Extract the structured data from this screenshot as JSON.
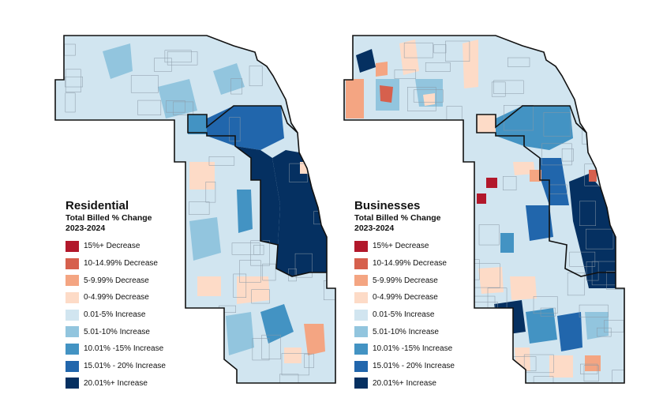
{
  "maps": [
    {
      "id": "residential",
      "title": "Residential",
      "subtitle_1": "Total Billed % Change",
      "subtitle_2": "2023-2024",
      "legend": [
        {
          "label": "15%+ Decrease",
          "color": "#b2182b"
        },
        {
          "label": "10-14.99% Decrease",
          "color": "#d6604d"
        },
        {
          "label": "5-9.99% Decrease",
          "color": "#f4a582"
        },
        {
          "label": "0-4.99% Decrease",
          "color": "#fddbc7"
        },
        {
          "label": "0.01-5% Increase",
          "color": "#d1e5f0"
        },
        {
          "label": "5.01-10% Increase",
          "color": "#92c5de"
        },
        {
          "label": "10.01% -15% Increase",
          "color": "#4393c3"
        },
        {
          "label": "15.01% - 20% Increase",
          "color": "#2166ac"
        },
        {
          "label": "20.01%+ Increase",
          "color": "#053061"
        }
      ]
    },
    {
      "id": "businesses",
      "title": "Businesses",
      "subtitle_1": "Total Billed % Change",
      "subtitle_2": "2023-2024",
      "legend": [
        {
          "label": "15%+ Decrease",
          "color": "#b2182b"
        },
        {
          "label": "10-14.99% Decrease",
          "color": "#d6604d"
        },
        {
          "label": "5-9.99% Decrease",
          "color": "#f4a582"
        },
        {
          "label": "0-4.99% Decrease",
          "color": "#fddbc7"
        },
        {
          "label": "0.01-5% Increase",
          "color": "#d1e5f0"
        },
        {
          "label": "5.01-10% Increase",
          "color": "#92c5de"
        },
        {
          "label": "10.01% -15% Increase",
          "color": "#4393c3"
        },
        {
          "label": "15.01% - 20% Increase",
          "color": "#2166ac"
        },
        {
          "label": "20.01%+ Increase",
          "color": "#053061"
        }
      ]
    }
  ],
  "colors": {
    "base_fill": "#d1e5f0",
    "outline": "#111111",
    "internal_line": "#8a99a6"
  }
}
